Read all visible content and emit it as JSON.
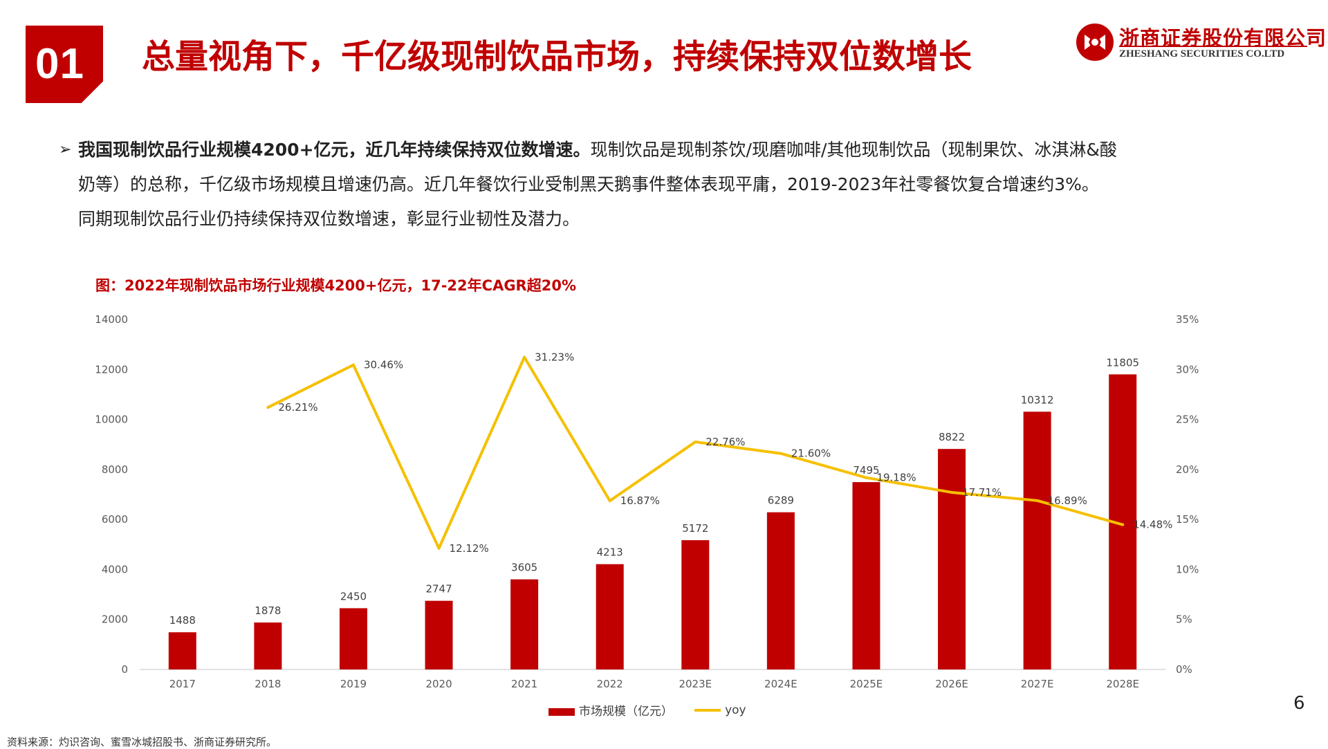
{
  "section_number": "01",
  "slide_title": "总量视角下，千亿级现制饮品市场，持续保持双位数增长",
  "logo": {
    "name_cn": "浙商证券股份有限公司",
    "name_en": "ZHESHANG SECURITIES CO.LTD",
    "brand_color": "#c00000"
  },
  "body": {
    "bullet_icon": "arrow-right-icon",
    "lead": "我国现制饮品行业规模4200+亿元，近几年持续保持双位数增速。",
    "line1": "现制饮品是现制茶饮/现磨咖啡/其他现制饮品（现制果饮、冰淇淋&酸",
    "line2": "奶等）的总称，千亿级市场规模且增速仍高。近几年餐饮行业受制黑天鹅事件整体表现平庸，2019-2023年社零餐饮复合增速约3%。",
    "line3": "同期现制饮品行业仍持续保持双位数增速，彰显行业韧性及潜力。"
  },
  "chart_data": {
    "type": "bar",
    "title": "图：2022年现制饮品市场行业规模4200+亿元，17-22年CAGR超20%",
    "categories": [
      "2017",
      "2018",
      "2019",
      "2020",
      "2021",
      "2022",
      "2023E",
      "2024E",
      "2025E",
      "2026E",
      "2027E",
      "2028E"
    ],
    "series": [
      {
        "name": "市场规模（亿元）",
        "type": "bar",
        "axis": "left",
        "color": "#c00000",
        "values": [
          1488,
          1878,
          2450,
          2747,
          3605,
          4213,
          5172,
          6289,
          7495,
          8822,
          10312,
          11805
        ],
        "labels": [
          "1488",
          "1878",
          "2450",
          "2747",
          "3605",
          "4213",
          "5172",
          "6289",
          "7495",
          "8822",
          "10312",
          "11805"
        ]
      },
      {
        "name": "yoy",
        "type": "line",
        "axis": "right",
        "color": "#f5c000",
        "values": [
          null,
          26.21,
          30.46,
          12.12,
          31.23,
          16.87,
          22.76,
          21.6,
          19.18,
          17.71,
          16.89,
          14.48
        ],
        "labels": [
          "",
          "26.21%",
          "30.46%",
          "12.12%",
          "31.23%",
          "16.87%",
          "22.76%",
          "21.60%",
          "19.18%",
          "17.71%",
          "16.89%",
          "14.48%"
        ]
      }
    ],
    "y_left": {
      "min": 0,
      "max": 14000,
      "ticks": [
        "0",
        "2000",
        "4000",
        "6000",
        "8000",
        "10000",
        "12000",
        "14000"
      ]
    },
    "y_right": {
      "min": 0,
      "max": 35,
      "ticks": [
        "0%",
        "5%",
        "10%",
        "15%",
        "20%",
        "25%",
        "30%",
        "35%"
      ]
    },
    "grid": false,
    "legend_position": "bottom"
  },
  "page_number": "6",
  "source_note": "资料来源：灼识咨询、蜜雪冰城招股书、浙商证券研究所。"
}
